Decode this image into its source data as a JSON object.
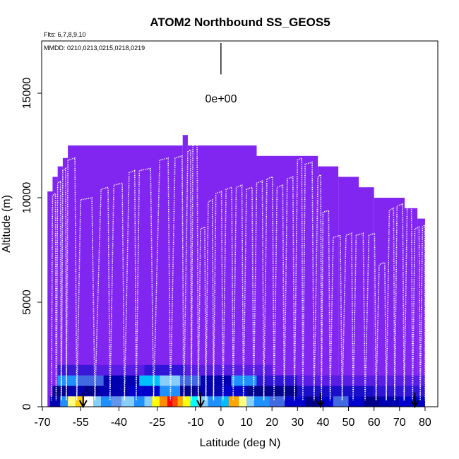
{
  "chart_data": {
    "type": "heatmap",
    "title": "ATOM2 Northbound SS_GEOS5",
    "subtitle_flights": "Flts: 6,7,8,9,10",
    "annotation_dates": "MMDD: 0210,0213,0215,0218,0219",
    "xlabel": "Latitude (deg N)",
    "ylabel": "Altitude (m)",
    "xlim": [
      -70,
      85
    ],
    "ylim": [
      0,
      17500
    ],
    "x_ticks": [
      -70,
      -55,
      -40,
      -25,
      -10,
      0,
      10,
      20,
      30,
      40,
      50,
      60,
      70,
      80
    ],
    "x_tick_labels": [
      "-70",
      "-55",
      "-40",
      "-25",
      "-10",
      "0",
      "10",
      "20",
      "30",
      "40",
      "50",
      "60",
      "70",
      "80"
    ],
    "y_ticks": [
      0,
      5000,
      10000,
      15000
    ],
    "y_tick_labels": [
      "0",
      "5000",
      "10000",
      "15000"
    ],
    "colorscale_label": "0e+00",
    "colors": {
      "background": "#8125f0",
      "track": "#ffffff",
      "low": "#00008b",
      "mid": "#1e90ff",
      "high": "#ff0000",
      "frame": "#000000"
    },
    "columns_top_altitude": [
      {
        "lat0": -68,
        "lat1": -66,
        "top": 10300
      },
      {
        "lat0": -66,
        "lat1": -64,
        "top": 11000
      },
      {
        "lat0": -64,
        "lat1": -62,
        "top": 11500
      },
      {
        "lat0": -62,
        "lat1": -60,
        "top": 11900
      },
      {
        "lat0": -60,
        "lat1": -15,
        "top": 12500
      },
      {
        "lat0": -15,
        "lat1": -13,
        "top": 13000
      },
      {
        "lat0": -13,
        "lat1": 14,
        "top": 12500
      },
      {
        "lat0": 14,
        "lat1": 38,
        "top": 12000
      },
      {
        "lat0": 38,
        "lat1": 46,
        "top": 11500
      },
      {
        "lat0": 46,
        "lat1": 54,
        "top": 11000
      },
      {
        "lat0": 54,
        "lat1": 60,
        "top": 10500
      },
      {
        "lat0": 60,
        "lat1": 72,
        "top": 10000
      },
      {
        "lat0": 72,
        "lat1": 77,
        "top": 9500
      },
      {
        "lat0": 77,
        "lat1": 80,
        "top": 9000
      }
    ],
    "surface_bands": [
      {
        "alt0": 0,
        "alt1": 500,
        "cells": [
          {
            "lat0": -67,
            "lat1": -63,
            "color": "#0000b0"
          },
          {
            "lat0": -63,
            "lat1": -60,
            "color": "#1e90ff"
          },
          {
            "lat0": -60,
            "lat1": -57,
            "color": "#ffff80"
          },
          {
            "lat0": -57,
            "lat1": -54,
            "color": "#ffcc00"
          },
          {
            "lat0": -54,
            "lat1": -50,
            "color": "#ffffff"
          },
          {
            "lat0": -50,
            "lat1": -47,
            "color": "#87cefa"
          },
          {
            "lat0": -47,
            "lat1": -43,
            "color": "#1e90ff"
          },
          {
            "lat0": -43,
            "lat1": -39,
            "color": "#6495ed"
          },
          {
            "lat0": -39,
            "lat1": -34,
            "color": "#87cefa"
          },
          {
            "lat0": -34,
            "lat1": -30,
            "color": "#1e90ff"
          },
          {
            "lat0": -30,
            "lat1": -27,
            "color": "#87cefa"
          },
          {
            "lat0": -27,
            "lat1": -24,
            "color": "#ffff00"
          },
          {
            "lat0": -24,
            "lat1": -21,
            "color": "#ff8c00"
          },
          {
            "lat0": -21,
            "lat1": -19,
            "color": "#ff0000"
          },
          {
            "lat0": -19,
            "lat1": -17,
            "color": "#ff4500"
          },
          {
            "lat0": -17,
            "lat1": -15,
            "color": "#ffa500"
          },
          {
            "lat0": -15,
            "lat1": -12,
            "color": "#ffff00"
          },
          {
            "lat0": -12,
            "lat1": -9,
            "color": "#00ffff"
          },
          {
            "lat0": -9,
            "lat1": -5,
            "color": "#87cefa"
          },
          {
            "lat0": -5,
            "lat1": 0,
            "color": "#1e90ff"
          },
          {
            "lat0": 0,
            "lat1": 3,
            "color": "#00bfff"
          },
          {
            "lat0": 3,
            "lat1": 7,
            "color": "#ffa500"
          },
          {
            "lat0": 7,
            "lat1": 10,
            "color": "#ffff80"
          },
          {
            "lat0": 10,
            "lat1": 13,
            "color": "#87cefa"
          },
          {
            "lat0": 13,
            "lat1": 19,
            "color": "#1e90ff"
          },
          {
            "lat0": 19,
            "lat1": 25,
            "color": "#4169e1"
          },
          {
            "lat0": 25,
            "lat1": 33,
            "color": "#0000cd"
          },
          {
            "lat0": 33,
            "lat1": 38,
            "color": "#00008b"
          },
          {
            "lat0": 38,
            "lat1": 44,
            "color": "#0000cd"
          },
          {
            "lat0": 44,
            "lat1": 50,
            "color": "#4169e1"
          },
          {
            "lat0": 50,
            "lat1": 56,
            "color": "#0000cd"
          },
          {
            "lat0": 56,
            "lat1": 62,
            "color": "#00008b"
          },
          {
            "lat0": 62,
            "lat1": 70,
            "color": "#0000b0"
          },
          {
            "lat0": 70,
            "lat1": 80,
            "color": "#0000cd"
          }
        ]
      },
      {
        "alt0": 500,
        "alt1": 1000,
        "cells": [
          {
            "lat0": -66,
            "lat1": -60,
            "color": "#00008b"
          },
          {
            "lat0": -60,
            "lat1": -54,
            "color": "#0000b0"
          },
          {
            "lat0": -54,
            "lat1": -48,
            "color": "#00008b"
          },
          {
            "lat0": -48,
            "lat1": -36,
            "color": "#0000b0"
          },
          {
            "lat0": -36,
            "lat1": -24,
            "color": "#0000cd"
          },
          {
            "lat0": -24,
            "lat1": -16,
            "color": "#1e90ff"
          },
          {
            "lat0": -16,
            "lat1": -10,
            "color": "#00008b"
          },
          {
            "lat0": -10,
            "lat1": 0,
            "color": "#0000b0"
          },
          {
            "lat0": 0,
            "lat1": 10,
            "color": "#0000cd"
          },
          {
            "lat0": 10,
            "lat1": 30,
            "color": "#00008b"
          },
          {
            "lat0": 30,
            "lat1": 60,
            "color": "#1a0fc9"
          },
          {
            "lat0": 60,
            "lat1": 80,
            "color": "#3014d8"
          }
        ]
      },
      {
        "alt0": 1000,
        "alt1": 1500,
        "cells": [
          {
            "lat0": -64,
            "lat1": -56,
            "color": "#1e90ff"
          },
          {
            "lat0": -56,
            "lat1": -46,
            "color": "#4169e1"
          },
          {
            "lat0": -46,
            "lat1": -32,
            "color": "#0000b0"
          },
          {
            "lat0": -32,
            "lat1": -24,
            "color": "#00bfff"
          },
          {
            "lat0": -24,
            "lat1": -16,
            "color": "#87cefa"
          },
          {
            "lat0": -16,
            "lat1": -8,
            "color": "#4169e1"
          },
          {
            "lat0": -8,
            "lat1": 4,
            "color": "#0000b0"
          },
          {
            "lat0": 4,
            "lat1": 14,
            "color": "#1e90ff"
          },
          {
            "lat0": 14,
            "lat1": 30,
            "color": "#3014d8"
          },
          {
            "lat0": 30,
            "lat1": 80,
            "color": "#5a1de6"
          }
        ]
      },
      {
        "alt0": 1500,
        "alt1": 2000,
        "cells": [
          {
            "lat0": -64,
            "lat1": -50,
            "color": "#3a18d6"
          },
          {
            "lat0": -50,
            "lat1": -30,
            "color": "#5a1de6"
          },
          {
            "lat0": -30,
            "lat1": -14,
            "color": "#3014d8"
          },
          {
            "lat0": -14,
            "lat1": 20,
            "color": "#5a1de6"
          }
        ]
      }
    ],
    "surface_arrows_lat": [
      -54,
      -8,
      39,
      76
    ],
    "colorbar_line_top_alt": 17400,
    "colorbar_line_bottom_alt": 15900,
    "colorbar_line_lat": 0
  }
}
